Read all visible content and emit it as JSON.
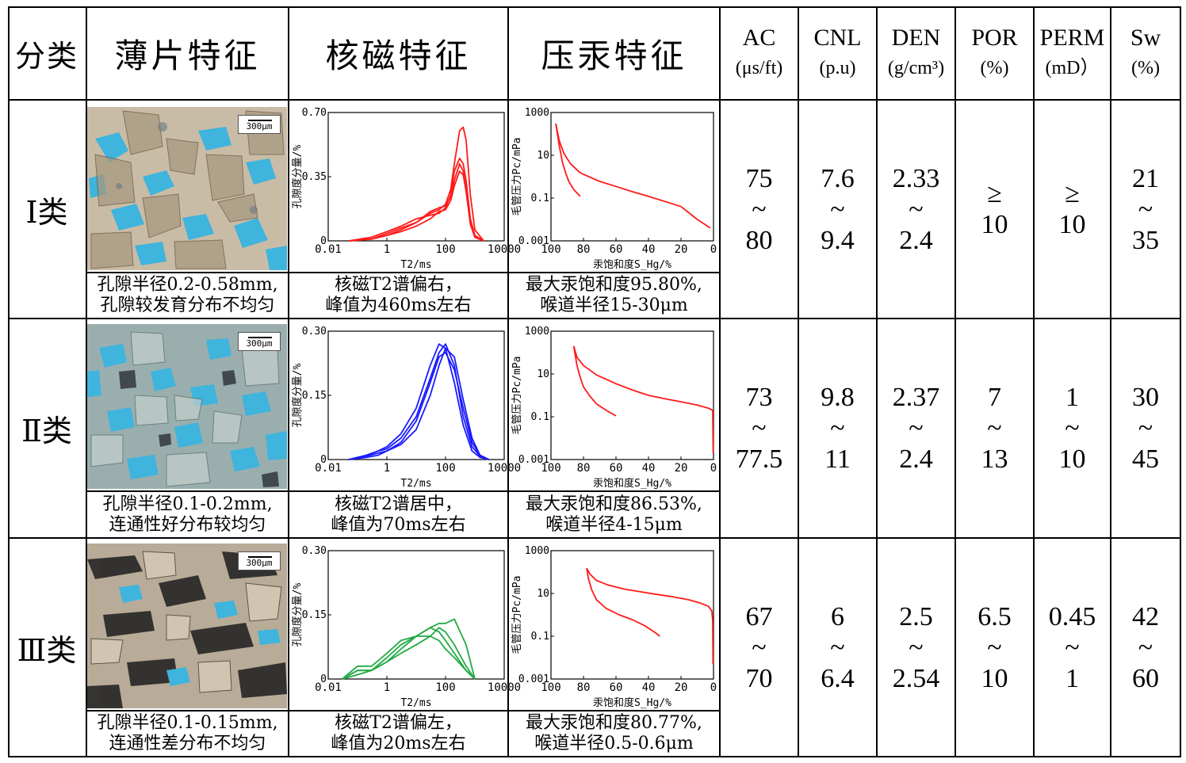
{
  "header": {
    "category": "分类",
    "thin_section": "薄片特征",
    "nmr": "核磁特征",
    "mercury": "压汞特征",
    "ac": {
      "name": "AC",
      "unit": "(μs/ft)"
    },
    "cnl": {
      "name": "CNL",
      "unit": "(p.u)"
    },
    "den": {
      "name": "DEN",
      "unit": "(g/cm³)"
    },
    "por": {
      "name": "POR",
      "unit": "(%)"
    },
    "perm": {
      "name": "PERM",
      "unit": "(mD）"
    },
    "sw": {
      "name": "Sw",
      "unit": "(%)"
    }
  },
  "rows": [
    {
      "label": "Ⅰ类",
      "scale": "300μm",
      "thin_desc": [
        "孔隙半径0.2-0.58mm,",
        "孔隙较发育分布不均匀"
      ],
      "nmr_desc": [
        "核磁T2谱偏右，",
        "峰值为460ms左右"
      ],
      "hg_desc": [
        "最大汞饱和度95.80%,",
        "喉道半径15-30μm"
      ],
      "ac": [
        "75",
        "~",
        "80"
      ],
      "cnl": [
        "7.6",
        "~",
        "9.4"
      ],
      "den": [
        "2.33",
        "~",
        "2.4"
      ],
      "por": [
        "≥",
        "10"
      ],
      "perm": [
        "≥",
        "10"
      ],
      "sw": [
        "21",
        "~",
        "35"
      ]
    },
    {
      "label": "Ⅱ类",
      "scale": "300μm",
      "thin_desc": [
        "孔隙半径0.1-0.2mm,",
        "连通性好分布较均匀"
      ],
      "nmr_desc": [
        "核磁T2谱居中，",
        "峰值为70ms左右"
      ],
      "hg_desc": [
        "最大汞饱和度86.53%,",
        "喉道半径4-15μm"
      ],
      "ac": [
        "73",
        "~",
        "77.5"
      ],
      "cnl": [
        "9.8",
        "~",
        "11"
      ],
      "den": [
        "2.37",
        "~",
        "2.4"
      ],
      "por": [
        "7",
        "~",
        "13"
      ],
      "perm": [
        "1",
        "~",
        "10"
      ],
      "sw": [
        "30",
        "~",
        "45"
      ]
    },
    {
      "label": "Ⅲ类",
      "scale": "300μm",
      "thin_desc": [
        "孔隙半径0.1-0.15mm,",
        "连通性差分布不均匀"
      ],
      "nmr_desc": [
        "核磁T2谱偏左，",
        "峰值为20ms左右"
      ],
      "hg_desc": [
        "最大汞饱和度80.77%,",
        "喉道半径0.5-0.6μm"
      ],
      "ac": [
        "67",
        "~",
        "70"
      ],
      "cnl": [
        "6",
        "~",
        "6.4"
      ],
      "den": [
        "2.5",
        "~",
        "2.54"
      ],
      "por": [
        "6.5",
        "~",
        "10"
      ],
      "perm": [
        "0.45",
        "~",
        "1"
      ],
      "sw": [
        "42",
        "~",
        "60"
      ]
    }
  ],
  "colors": {
    "class1_nmr": "#ff1a1a",
    "class2_nmr": "#1a1aff",
    "class3_nmr": "#22aa44",
    "hg_curve": "#ff1a1a",
    "pore_blue": "#3fb4dc"
  },
  "chart_data": [
    {
      "type": "line",
      "id": "nmr-1",
      "title": "",
      "xlabel": "T2/ms",
      "ylabel": "孔隙度分量/%",
      "xscale": "log",
      "xlim": [
        0.01,
        10000
      ],
      "ylim": [
        0,
        0.7
      ],
      "xticks": [
        "0.01",
        "1",
        "100",
        "10000"
      ],
      "yticks": [
        "0",
        "0.35",
        "0.70"
      ],
      "series": [
        {
          "name": "s1",
          "x": [
            0.05,
            0.3,
            1,
            3,
            10,
            30,
            60,
            100,
            150,
            200,
            300,
            400,
            500,
            700,
            1000,
            2000
          ],
          "y": [
            0,
            0.01,
            0.03,
            0.06,
            0.1,
            0.15,
            0.17,
            0.2,
            0.28,
            0.42,
            0.6,
            0.62,
            0.55,
            0.25,
            0.06,
            0
          ]
        },
        {
          "name": "s2",
          "x": [
            0.05,
            0.3,
            1,
            3,
            10,
            30,
            60,
            100,
            150,
            200,
            300,
            400,
            500,
            700,
            1000,
            2000
          ],
          "y": [
            0,
            0.02,
            0.05,
            0.08,
            0.12,
            0.14,
            0.15,
            0.18,
            0.25,
            0.38,
            0.45,
            0.42,
            0.33,
            0.12,
            0.03,
            0
          ]
        },
        {
          "name": "s3",
          "x": [
            0.05,
            0.3,
            1,
            3,
            10,
            30,
            60,
            100,
            150,
            200,
            300,
            400,
            500,
            700,
            1000,
            2000
          ],
          "y": [
            0,
            0.01,
            0.04,
            0.07,
            0.1,
            0.16,
            0.18,
            0.19,
            0.24,
            0.33,
            0.42,
            0.38,
            0.28,
            0.1,
            0.02,
            0
          ]
        },
        {
          "name": "s4",
          "x": [
            0.05,
            0.3,
            1,
            3,
            10,
            30,
            60,
            100,
            150,
            200,
            300,
            400,
            500,
            700,
            1000,
            2000
          ],
          "y": [
            0,
            0.01,
            0.03,
            0.05,
            0.08,
            0.12,
            0.16,
            0.17,
            0.22,
            0.3,
            0.38,
            0.36,
            0.27,
            0.09,
            0.02,
            0
          ]
        }
      ]
    },
    {
      "type": "line",
      "id": "hg-1",
      "title": "",
      "xlabel": "汞饱和度S_Hg/%",
      "ylabel": "毛管压力Pc/mPa",
      "yscale": "log",
      "xlim": [
        100,
        0
      ],
      "ylim": [
        0.001,
        1000
      ],
      "xticks": [
        "100",
        "80",
        "60",
        "40",
        "20",
        "0"
      ],
      "yticks": [
        "0.001",
        "0.1",
        "10",
        "1000"
      ],
      "series": [
        {
          "name": "drainage",
          "x": [
            97,
            95,
            92,
            88,
            82,
            70,
            60,
            50,
            40,
            30,
            20,
            10,
            2
          ],
          "y": [
            300,
            50,
            12,
            4,
            1.5,
            0.6,
            0.35,
            0.2,
            0.12,
            0.07,
            0.04,
            0.01,
            0.004
          ]
        },
        {
          "name": "imbibition",
          "x": [
            97,
            95,
            93,
            91,
            89,
            86,
            82
          ],
          "y": [
            300,
            30,
            5,
            1.5,
            0.6,
            0.25,
            0.12
          ]
        }
      ]
    },
    {
      "type": "line",
      "id": "nmr-2",
      "title": "",
      "xlabel": "T2/ms",
      "ylabel": "孔隙度分量/%",
      "xscale": "log",
      "xlim": [
        0.01,
        10000
      ],
      "ylim": [
        0,
        0.3
      ],
      "xticks": [
        "0.01",
        "1",
        "100",
        "10000"
      ],
      "yticks": [
        "0",
        "0.15",
        "0.30"
      ],
      "series": [
        {
          "name": "s1",
          "x": [
            0.05,
            0.2,
            0.5,
            1,
            3,
            10,
            30,
            60,
            100,
            200,
            400,
            800,
            1500,
            3000
          ],
          "y": [
            0,
            0.01,
            0.02,
            0.03,
            0.06,
            0.12,
            0.22,
            0.27,
            0.26,
            0.18,
            0.08,
            0.02,
            0.005,
            0
          ]
        },
        {
          "name": "s2",
          "x": [
            0.05,
            0.2,
            0.5,
            1,
            3,
            10,
            30,
            60,
            100,
            200,
            400,
            800,
            1500,
            3000
          ],
          "y": [
            0,
            0.005,
            0.01,
            0.02,
            0.04,
            0.09,
            0.18,
            0.24,
            0.25,
            0.21,
            0.12,
            0.04,
            0.01,
            0
          ]
        },
        {
          "name": "s3",
          "x": [
            0.05,
            0.2,
            0.5,
            1,
            3,
            10,
            30,
            60,
            100,
            200,
            400,
            800,
            1500,
            3000
          ],
          "y": [
            0,
            0.01,
            0.02,
            0.025,
            0.05,
            0.1,
            0.19,
            0.25,
            0.27,
            0.22,
            0.1,
            0.03,
            0.008,
            0
          ]
        },
        {
          "name": "s4",
          "x": [
            0.05,
            0.2,
            0.5,
            1,
            3,
            10,
            30,
            60,
            100,
            200,
            400,
            800,
            1500,
            3000
          ],
          "y": [
            0,
            0.008,
            0.015,
            0.02,
            0.035,
            0.07,
            0.15,
            0.22,
            0.26,
            0.24,
            0.14,
            0.05,
            0.01,
            0
          ]
        }
      ]
    },
    {
      "type": "line",
      "id": "hg-2",
      "title": "",
      "xlabel": "汞饱和度S_Hg/%",
      "ylabel": "毛管压力Pc/mPa",
      "yscale": "log",
      "xlim": [
        100,
        0
      ],
      "ylim": [
        0.001,
        1000
      ],
      "xticks": [
        "100",
        "80",
        "60",
        "40",
        "20",
        "0"
      ],
      "yticks": [
        "0.001",
        "0.1",
        "10",
        "1000"
      ],
      "series": [
        {
          "name": "drainage",
          "x": [
            86,
            84,
            80,
            72,
            60,
            50,
            40,
            30,
            20,
            10,
            3,
            0.5,
            0.2
          ],
          "y": [
            200,
            60,
            25,
            9,
            3.5,
            1.8,
            1,
            0.7,
            0.5,
            0.35,
            0.25,
            0.2,
            0.002
          ]
        },
        {
          "name": "imbibition",
          "x": [
            86,
            84,
            82,
            80,
            76,
            72,
            66,
            60
          ],
          "y": [
            200,
            25,
            7,
            2.5,
            0.9,
            0.4,
            0.2,
            0.11
          ]
        }
      ]
    },
    {
      "type": "line",
      "id": "nmr-3",
      "title": "",
      "xlabel": "T2/ms",
      "ylabel": "孔隙度分量/%",
      "xscale": "log",
      "xlim": [
        0.01,
        10000
      ],
      "ylim": [
        0,
        0.3
      ],
      "xticks": [
        "0.01",
        "1",
        "100",
        "10000"
      ],
      "yticks": [
        "0",
        "0.15",
        "0.30"
      ],
      "series": [
        {
          "name": "s1",
          "x": [
            0.03,
            0.1,
            0.3,
            1,
            3,
            10,
            30,
            60,
            100,
            200,
            500,
            1000
          ],
          "y": [
            0,
            0.02,
            0.02,
            0.05,
            0.08,
            0.1,
            0.12,
            0.13,
            0.13,
            0.14,
            0.08,
            0
          ]
        },
        {
          "name": "s2",
          "x": [
            0.03,
            0.1,
            0.3,
            1,
            3,
            10,
            30,
            60,
            100,
            200,
            500,
            1000
          ],
          "y": [
            0,
            0.03,
            0.03,
            0.06,
            0.09,
            0.1,
            0.1,
            0.09,
            0.07,
            0.05,
            0.02,
            0
          ]
        },
        {
          "name": "s3",
          "x": [
            0.03,
            0.1,
            0.3,
            1,
            3,
            10,
            30,
            60,
            100,
            200,
            500,
            1000
          ],
          "y": [
            0,
            0.01,
            0.02,
            0.04,
            0.07,
            0.1,
            0.12,
            0.11,
            0.09,
            0.06,
            0.02,
            0
          ]
        },
        {
          "name": "s4",
          "x": [
            0.03,
            0.1,
            0.3,
            1,
            3,
            10,
            30,
            60,
            100,
            200,
            500,
            1000
          ],
          "y": [
            0,
            0.02,
            0.02,
            0.04,
            0.06,
            0.08,
            0.1,
            0.12,
            0.11,
            0.08,
            0.03,
            0
          ]
        }
      ]
    },
    {
      "type": "line",
      "id": "hg-3",
      "title": "",
      "xlabel": "汞饱和度S_Hg/%",
      "ylabel": "毛管压力Pc/mPa",
      "yscale": "log",
      "xlim": [
        100,
        0
      ],
      "ylim": [
        0.001,
        1000
      ],
      "xticks": [
        "100",
        "80",
        "60",
        "40",
        "20",
        "0"
      ],
      "yticks": [
        "0.001",
        "0.1",
        "10",
        "1000"
      ],
      "series": [
        {
          "name": "drainage",
          "x": [
            78,
            76,
            72,
            65,
            55,
            45,
            35,
            25,
            15,
            8,
            3,
            1,
            0.5,
            0.3
          ],
          "y": [
            150,
            80,
            40,
            25,
            16,
            12,
            9,
            7,
            5,
            3.5,
            2.5,
            1.5,
            0.5,
            0.005
          ]
        },
        {
          "name": "imbibition",
          "x": [
            78,
            77,
            75,
            72,
            66,
            58,
            50,
            42,
            36,
            33
          ],
          "y": [
            150,
            50,
            15,
            5,
            2,
            1,
            0.6,
            0.3,
            0.15,
            0.1
          ]
        }
      ]
    }
  ]
}
